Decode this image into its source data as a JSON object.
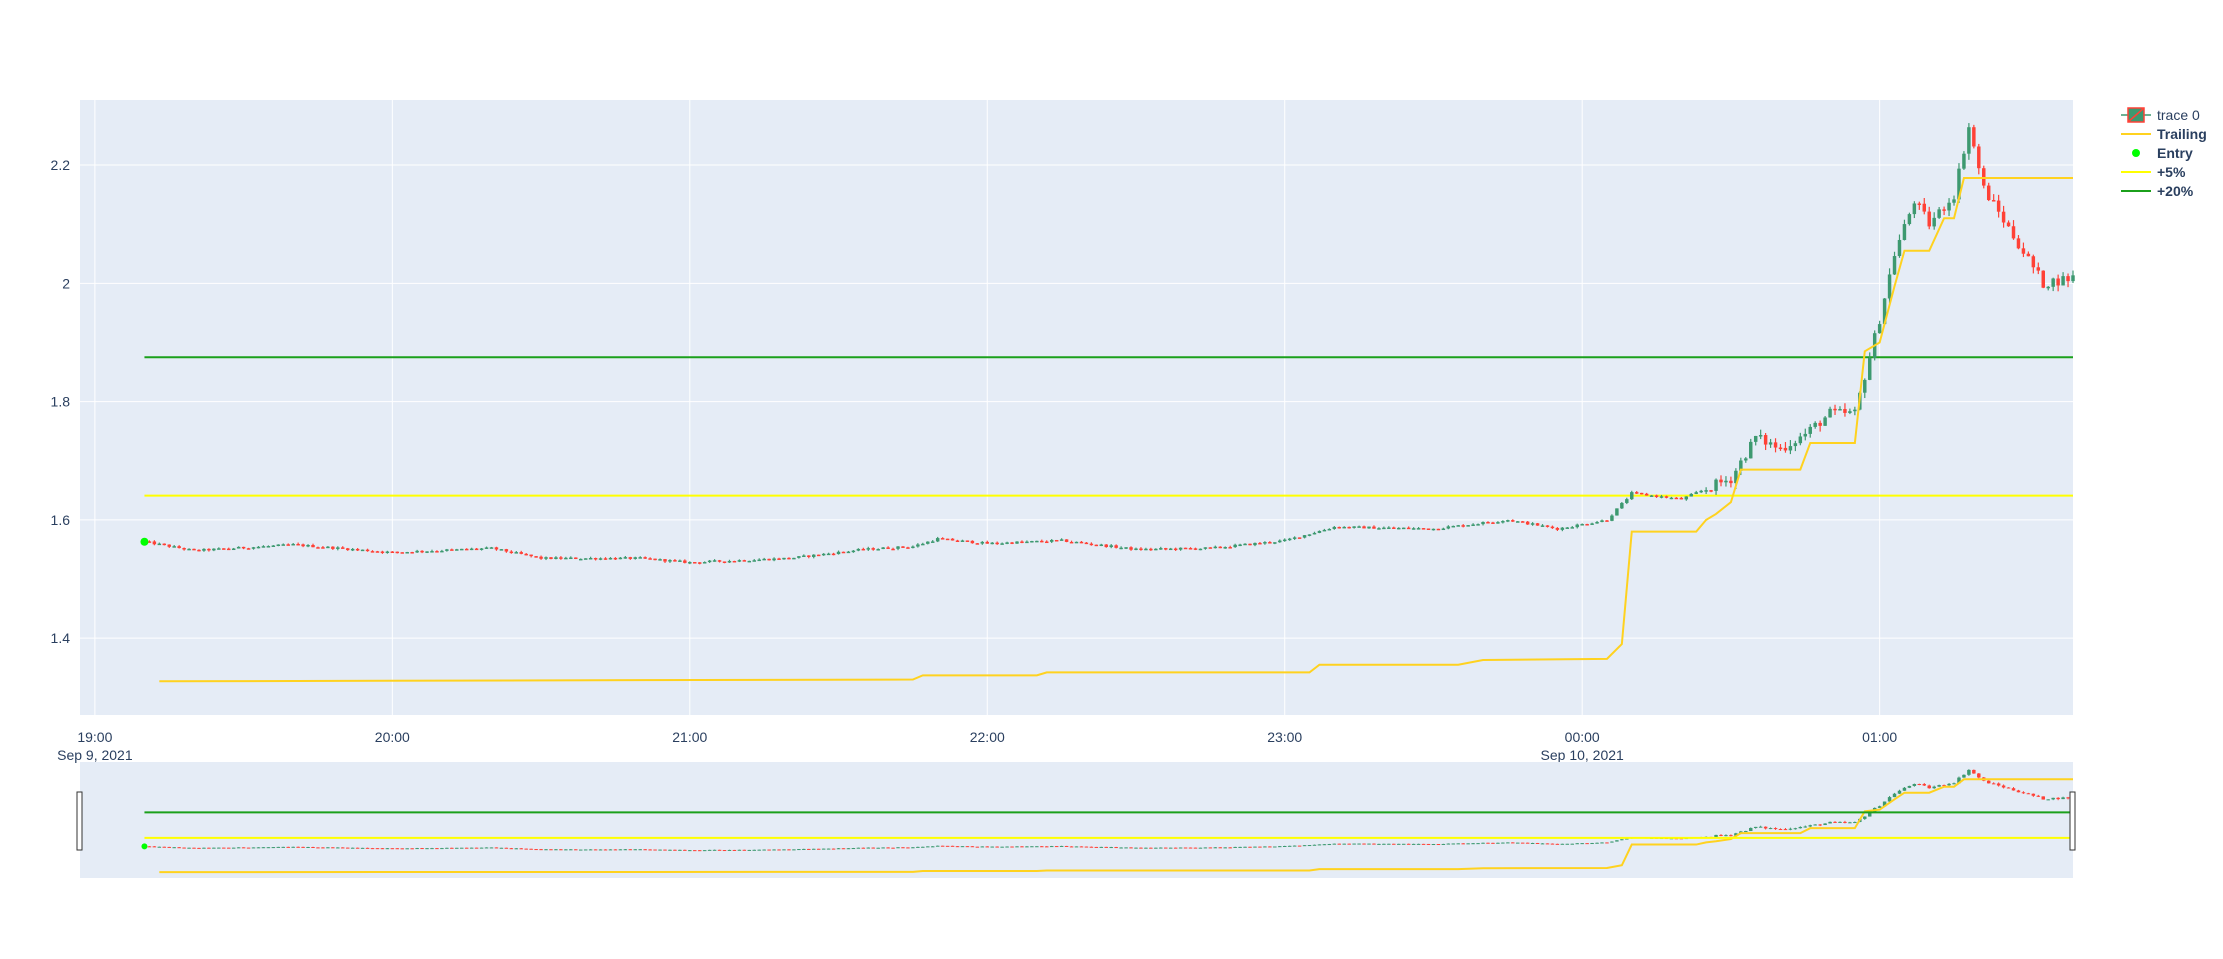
{
  "chart_data": {
    "type": "candlestick",
    "title": "",
    "x_start": "2021-09-09T19:10",
    "x_end": "2021-09-10T01:39",
    "x_range": [
      "2021-09-09T18:57",
      "2021-09-10T01:39"
    ],
    "ylim": [
      1.27,
      2.31
    ],
    "grid": true,
    "legend_placement": "right",
    "y_ticks": [
      {
        "value": 1.4,
        "label": "1.4"
      },
      {
        "value": 1.6,
        "label": "1.6"
      },
      {
        "value": 1.8,
        "label": "1.8"
      },
      {
        "value": 2.0,
        "label": "2"
      },
      {
        "value": 2.2,
        "label": "2.2"
      }
    ],
    "x_ticks": [
      {
        "time": "2021-09-09T19:00",
        "label": "19:00",
        "sublabel": "Sep 9, 2021"
      },
      {
        "time": "2021-09-09T20:00",
        "label": "20:00",
        "sublabel": ""
      },
      {
        "time": "2021-09-09T21:00",
        "label": "21:00",
        "sublabel": ""
      },
      {
        "time": "2021-09-09T22:00",
        "label": "22:00",
        "sublabel": ""
      },
      {
        "time": "2021-09-09T23:00",
        "label": "23:00",
        "sublabel": ""
      },
      {
        "time": "2021-09-10T00:00",
        "label": "00:00",
        "sublabel": "Sep 10, 2021"
      },
      {
        "time": "2021-09-10T01:00",
        "label": "01:00",
        "sublabel": ""
      }
    ],
    "close_keypoints": [
      {
        "time": "2021-09-09T19:10",
        "close": 1.563
      },
      {
        "time": "2021-09-09T19:20",
        "close": 1.548
      },
      {
        "time": "2021-09-09T19:40",
        "close": 1.558
      },
      {
        "time": "2021-09-09T20:00",
        "close": 1.545
      },
      {
        "time": "2021-09-09T20:20",
        "close": 1.552
      },
      {
        "time": "2021-09-09T20:30",
        "close": 1.535
      },
      {
        "time": "2021-09-09T20:50",
        "close": 1.535
      },
      {
        "time": "2021-09-09T21:00",
        "close": 1.528
      },
      {
        "time": "2021-09-09T21:20",
        "close": 1.535
      },
      {
        "time": "2021-09-09T21:35",
        "close": 1.55
      },
      {
        "time": "2021-09-09T21:45",
        "close": 1.555
      },
      {
        "time": "2021-09-09T21:50",
        "close": 1.568
      },
      {
        "time": "2021-09-09T22:00",
        "close": 1.56
      },
      {
        "time": "2021-09-09T22:15",
        "close": 1.565
      },
      {
        "time": "2021-09-09T22:30",
        "close": 1.55
      },
      {
        "time": "2021-09-09T22:45",
        "close": 1.552
      },
      {
        "time": "2021-09-09T23:00",
        "close": 1.565
      },
      {
        "time": "2021-09-09T23:10",
        "close": 1.588
      },
      {
        "time": "2021-09-09T23:30",
        "close": 1.585
      },
      {
        "time": "2021-09-09T23:45",
        "close": 1.6
      },
      {
        "time": "2021-09-09T23:55",
        "close": 1.585
      },
      {
        "time": "2021-09-10T00:05",
        "close": 1.6
      },
      {
        "time": "2021-09-10T00:10",
        "close": 1.645
      },
      {
        "time": "2021-09-10T00:20",
        "close": 1.635
      },
      {
        "time": "2021-09-10T00:30",
        "close": 1.67
      },
      {
        "time": "2021-09-10T00:35",
        "close": 1.74
      },
      {
        "time": "2021-09-10T00:40",
        "close": 1.72
      },
      {
        "time": "2021-09-10T00:45",
        "close": 1.745
      },
      {
        "time": "2021-09-10T00:50",
        "close": 1.78
      },
      {
        "time": "2021-09-10T00:55",
        "close": 1.78
      },
      {
        "time": "2021-09-10T01:00",
        "close": 1.94
      },
      {
        "time": "2021-09-10T01:03",
        "close": 2.05
      },
      {
        "time": "2021-09-10T01:07",
        "close": 2.14
      },
      {
        "time": "2021-09-10T01:10",
        "close": 2.1
      },
      {
        "time": "2021-09-10T01:15",
        "close": 2.15
      },
      {
        "time": "2021-09-10T01:18",
        "close": 2.265
      },
      {
        "time": "2021-09-10T01:21",
        "close": 2.16
      },
      {
        "time": "2021-09-10T01:27",
        "close": 2.08
      },
      {
        "time": "2021-09-10T01:33",
        "close": 2.0
      },
      {
        "time": "2021-09-10T01:39",
        "close": 2.01
      }
    ],
    "series": [
      {
        "name": "Trailing",
        "type": "line",
        "color": "#ffd21f",
        "x": [
          "2021-09-09T19:13",
          "2021-09-09T21:45",
          "2021-09-09T21:47",
          "2021-09-09T22:10",
          "2021-09-09T22:12",
          "2021-09-09T23:05",
          "2021-09-09T23:07",
          "2021-09-09T23:35",
          "2021-09-09T23:40",
          "2021-09-10T00:05",
          "2021-09-10T00:08",
          "2021-09-10T00:10",
          "2021-09-10T00:23",
          "2021-09-10T00:25",
          "2021-09-10T00:27",
          "2021-09-10T00:30",
          "2021-09-10T00:32",
          "2021-09-10T00:44",
          "2021-09-10T00:46",
          "2021-09-10T00:55",
          "2021-09-10T00:57",
          "2021-09-10T01:00",
          "2021-09-10T01:03",
          "2021-09-10T01:05",
          "2021-09-10T01:10",
          "2021-09-10T01:13",
          "2021-09-10T01:15",
          "2021-09-10T01:17",
          "2021-09-10T01:39"
        ],
        "y": [
          1.327,
          1.33,
          1.337,
          1.337,
          1.342,
          1.342,
          1.355,
          1.355,
          1.363,
          1.365,
          1.39,
          1.58,
          1.58,
          1.6,
          1.61,
          1.63,
          1.685,
          1.685,
          1.73,
          1.73,
          1.885,
          1.9,
          1.995,
          2.055,
          2.055,
          2.11,
          2.11,
          2.178,
          2.178
        ]
      },
      {
        "name": "Entry",
        "type": "scatter",
        "color": "#00ff00",
        "x": [
          "2021-09-09T19:10"
        ],
        "y": [
          1.563
        ]
      },
      {
        "name": "+5%",
        "type": "hline",
        "color": "#ffff00",
        "x": [
          "2021-09-09T19:10",
          "2021-09-10T01:39"
        ],
        "y": [
          1.641,
          1.641
        ]
      },
      {
        "name": "+20%",
        "type": "hline",
        "color": "#1ba01b",
        "x": [
          "2021-09-09T19:10",
          "2021-09-10T01:39"
        ],
        "y": [
          1.875,
          1.875
        ]
      }
    ],
    "candles_name": "trace 0",
    "increasing_color": "#3d9970",
    "decreasing_color": "#ff4136",
    "legend": [
      {
        "label": "trace 0",
        "kind": "candle",
        "bold": false
      },
      {
        "label": "Trailing",
        "kind": "line",
        "color": "#ffd21f",
        "bold": true
      },
      {
        "label": "Entry",
        "kind": "marker",
        "color": "#00ff00",
        "bold": true
      },
      {
        "label": "+5%",
        "kind": "line",
        "color": "#ffff00",
        "bold": true
      },
      {
        "label": "+20%",
        "kind": "line",
        "color": "#1ba01b",
        "bold": true
      }
    ]
  }
}
